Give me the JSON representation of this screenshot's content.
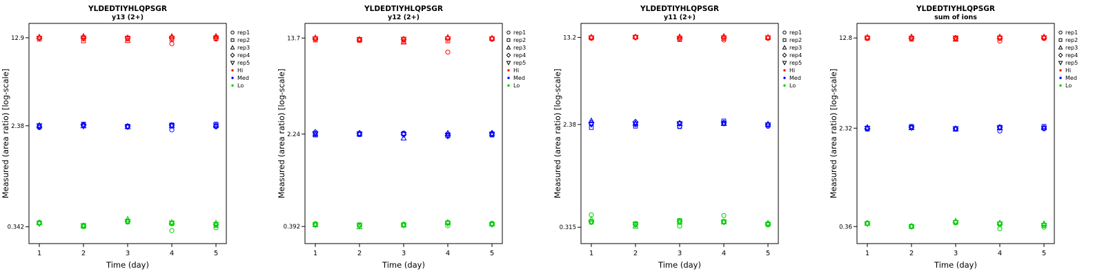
{
  "colors": {
    "hi": "#FF0000",
    "med": "#0000FF",
    "lo": "#00CD00",
    "axis": "#000000"
  },
  "legend": {
    "reps": [
      {
        "label": "rep1",
        "symbol": "circle"
      },
      {
        "label": "rep2",
        "symbol": "square"
      },
      {
        "label": "rep3",
        "symbol": "triangle-up"
      },
      {
        "label": "rep4",
        "symbol": "diamond"
      },
      {
        "label": "rep5",
        "symbol": "triangle-down"
      }
    ],
    "levels": [
      {
        "label": "Hi",
        "color_key": "hi"
      },
      {
        "label": "Med",
        "color_key": "med"
      },
      {
        "label": "Lo",
        "color_key": "lo"
      }
    ]
  },
  "chart_data": [
    {
      "type": "scatter",
      "title": "YLDEDTIYHLQPSGR",
      "subtitle": "y13 (2+)",
      "xlabel": "Time (day)",
      "ylabel": "Measured (area ratio) [log-scale]",
      "yscale": "log",
      "x": [
        1,
        2,
        3,
        4,
        5
      ],
      "yticks": [
        {
          "value": 12.9,
          "label": "12.9"
        },
        {
          "value": 2.38,
          "label": "2.38"
        },
        {
          "value": 0.342,
          "label": "0.342"
        }
      ],
      "levels": [
        {
          "name": "Hi",
          "color_key": "hi",
          "reps": [
            {
              "name": "rep1",
              "values": [
                12.9,
                12.65,
                12.75,
                11.5,
                12.6
              ]
            },
            {
              "name": "rep2",
              "values": [
                12.55,
                12.15,
                12.65,
                12.55,
                12.75
              ]
            },
            {
              "name": "rep3",
              "values": [
                13.1,
                13.3,
                12.25,
                13.25,
                13.3
              ]
            },
            {
              "name": "rep4",
              "values": [
                12.85,
                12.9,
                12.9,
                12.9,
                13.0
              ]
            },
            {
              "name": "rep5",
              "values": [
                12.8,
                12.85,
                12.8,
                12.8,
                12.9
              ]
            }
          ]
        },
        {
          "name": "Med",
          "color_key": "med",
          "reps": [
            {
              "name": "rep1",
              "values": [
                2.3,
                2.42,
                2.32,
                2.2,
                2.34
              ]
            },
            {
              "name": "rep2",
              "values": [
                2.36,
                2.46,
                2.36,
                2.42,
                2.46
              ]
            },
            {
              "name": "rep3",
              "values": [
                2.4,
                2.38,
                2.34,
                2.38,
                2.4
              ]
            },
            {
              "name": "rep4",
              "values": [
                2.34,
                2.4,
                2.36,
                2.4,
                2.36
              ]
            },
            {
              "name": "rep5",
              "values": [
                2.38,
                2.36,
                2.34,
                2.38,
                2.38
              ]
            }
          ]
        },
        {
          "name": "Lo",
          "color_key": "lo",
          "reps": [
            {
              "name": "rep1",
              "values": [
                0.372,
                0.352,
                0.382,
                0.318,
                0.336
              ]
            },
            {
              "name": "rep2",
              "values": [
                0.368,
                0.344,
                0.376,
                0.364,
                0.352
              ]
            },
            {
              "name": "rep3",
              "values": [
                0.37,
                0.35,
                0.396,
                0.372,
                0.368
              ]
            },
            {
              "name": "rep4",
              "values": [
                0.366,
                0.348,
                0.378,
                0.366,
                0.355
              ]
            },
            {
              "name": "rep5",
              "values": [
                0.364,
                0.35,
                0.38,
                0.368,
                0.358
              ]
            }
          ]
        }
      ]
    },
    {
      "type": "scatter",
      "title": "YLDEDTIYHLQPSGR",
      "subtitle": "y12 (2+)",
      "xlabel": "Time (day)",
      "ylabel": "Measured (area ratio) [log-scale]",
      "yscale": "log",
      "x": [
        1,
        2,
        3,
        4,
        5
      ],
      "yticks": [
        {
          "value": 13.7,
          "label": "13.7"
        },
        {
          "value": 2.24,
          "label": "2.24"
        },
        {
          "value": 0.392,
          "label": "0.392"
        }
      ],
      "levels": [
        {
          "name": "Hi",
          "color_key": "hi",
          "reps": [
            {
              "name": "rep1",
              "values": [
                13.5,
                13.3,
                13.2,
                10.5,
                13.4
              ]
            },
            {
              "name": "rep2",
              "values": [
                13.2,
                13.1,
                12.8,
                13.0,
                13.5
              ]
            },
            {
              "name": "rep3",
              "values": [
                13.8,
                13.4,
                12.7,
                13.9,
                13.7
              ]
            },
            {
              "name": "rep4",
              "values": [
                13.6,
                13.3,
                13.4,
                13.6,
                13.6
              ]
            },
            {
              "name": "rep5",
              "values": [
                13.5,
                13.35,
                13.4,
                13.5,
                13.5
              ]
            }
          ]
        },
        {
          "name": "Med",
          "color_key": "med",
          "reps": [
            {
              "name": "rep1",
              "values": [
                2.27,
                2.24,
                2.28,
                2.24,
                2.22
              ]
            },
            {
              "name": "rep2",
              "values": [
                2.2,
                2.22,
                2.25,
                2.17,
                2.2
              ]
            },
            {
              "name": "rep3",
              "values": [
                2.24,
                2.26,
                2.08,
                2.28,
                2.26
              ]
            },
            {
              "name": "rep4",
              "values": [
                2.32,
                2.28,
                2.22,
                2.16,
                2.28
              ]
            },
            {
              "name": "rep5",
              "values": [
                2.26,
                2.25,
                2.22,
                2.2,
                2.24
              ]
            }
          ]
        },
        {
          "name": "Lo",
          "color_key": "lo",
          "reps": [
            {
              "name": "rep1",
              "values": [
                0.413,
                0.4,
                0.409,
                0.398,
                0.416
              ]
            },
            {
              "name": "rep2",
              "values": [
                0.408,
                0.405,
                0.402,
                0.421,
                0.41
              ]
            },
            {
              "name": "rep3",
              "values": [
                0.405,
                0.39,
                0.404,
                0.425,
                0.412
              ]
            },
            {
              "name": "rep4",
              "values": [
                0.407,
                0.4,
                0.405,
                0.418,
                0.409
              ]
            },
            {
              "name": "rep5",
              "values": [
                0.404,
                0.398,
                0.403,
                0.415,
                0.407
              ]
            }
          ]
        }
      ]
    },
    {
      "type": "scatter",
      "title": "YLDEDTIYHLQPSGR",
      "subtitle": "y11 (2+)",
      "xlabel": "Time (day)",
      "ylabel": "Measured (area ratio) [log-scale]",
      "yscale": "log",
      "x": [
        1,
        2,
        3,
        4,
        5
      ],
      "yticks": [
        {
          "value": 13.2,
          "label": "13.2"
        },
        {
          "value": 2.38,
          "label": "2.38"
        },
        {
          "value": 0.315,
          "label": "0.315"
        }
      ],
      "levels": [
        {
          "name": "Hi",
          "color_key": "hi",
          "reps": [
            {
              "name": "rep1",
              "values": [
                13.0,
                13.2,
                12.75,
                12.55,
                13.0
              ]
            },
            {
              "name": "rep2",
              "values": [
                13.1,
                13.3,
                12.65,
                12.9,
                13.1
              ]
            },
            {
              "name": "rep3",
              "values": [
                13.3,
                13.35,
                13.4,
                13.5,
                13.25
              ]
            },
            {
              "name": "rep4",
              "values": [
                13.15,
                13.25,
                13.1,
                13.15,
                13.1
              ]
            },
            {
              "name": "rep5",
              "values": [
                13.1,
                13.2,
                13.0,
                13.1,
                13.1
              ]
            }
          ]
        },
        {
          "name": "Med",
          "color_key": "med",
          "reps": [
            {
              "name": "rep1",
              "values": [
                2.4,
                2.38,
                2.3,
                2.42,
                2.3
              ]
            },
            {
              "name": "rep2",
              "values": [
                2.24,
                2.3,
                2.28,
                2.55,
                2.36
              ]
            },
            {
              "name": "rep3",
              "values": [
                2.56,
                2.44,
                2.42,
                2.42,
                2.4
              ]
            },
            {
              "name": "rep4",
              "values": [
                2.46,
                2.5,
                2.44,
                2.46,
                2.38
              ]
            },
            {
              "name": "rep5",
              "values": [
                2.38,
                2.4,
                2.42,
                2.44,
                2.36
              ]
            }
          ]
        },
        {
          "name": "Lo",
          "color_key": "lo",
          "reps": [
            {
              "name": "rep1",
              "values": [
                0.402,
                0.33,
                0.322,
                0.396,
                0.33
              ]
            },
            {
              "name": "rep2",
              "values": [
                0.348,
                0.338,
                0.36,
                0.352,
                0.332
              ]
            },
            {
              "name": "rep3",
              "values": [
                0.368,
                0.322,
                0.35,
                0.35,
                0.342
              ]
            },
            {
              "name": "rep4",
              "values": [
                0.35,
                0.334,
                0.352,
                0.35,
                0.336
              ]
            },
            {
              "name": "rep5",
              "values": [
                0.349,
                0.333,
                0.351,
                0.348,
                0.335
              ]
            }
          ]
        }
      ]
    },
    {
      "type": "scatter",
      "title": "YLDEDTIYHLQPSGR",
      "subtitle": "sum of ions",
      "xlabel": "Time (day)",
      "ylabel": "Measured (area ratio) [log-scale]",
      "yscale": "log",
      "x": [
        1,
        2,
        3,
        4,
        5
      ],
      "yticks": [
        {
          "value": 12.8,
          "label": "12.8"
        },
        {
          "value": 2.32,
          "label": "2.32"
        },
        {
          "value": 0.36,
          "label": "0.36"
        }
      ],
      "levels": [
        {
          "name": "Hi",
          "color_key": "hi",
          "reps": [
            {
              "name": "rep1",
              "values": [
                12.8,
                12.7,
                12.7,
                12.1,
                12.7
              ]
            },
            {
              "name": "rep2",
              "values": [
                12.7,
                12.5,
                12.6,
                12.7,
                12.8
              ]
            },
            {
              "name": "rep3",
              "values": [
                13.0,
                13.1,
                12.5,
                13.1,
                13.1
              ]
            },
            {
              "name": "rep4",
              "values": [
                12.85,
                12.8,
                12.8,
                12.8,
                12.9
              ]
            },
            {
              "name": "rep5",
              "values": [
                12.8,
                12.75,
                12.8,
                12.8,
                12.85
              ]
            }
          ]
        },
        {
          "name": "Med",
          "color_key": "med",
          "reps": [
            {
              "name": "rep1",
              "values": [
                2.3,
                2.36,
                2.28,
                2.2,
                2.3
              ]
            },
            {
              "name": "rep2",
              "values": [
                2.28,
                2.4,
                2.3,
                2.36,
                2.4
              ]
            },
            {
              "name": "rep3",
              "values": [
                2.36,
                2.34,
                2.28,
                2.34,
                2.34
              ]
            },
            {
              "name": "rep4",
              "values": [
                2.3,
                2.36,
                2.3,
                2.36,
                2.32
              ]
            },
            {
              "name": "rep5",
              "values": [
                2.32,
                2.34,
                2.3,
                2.34,
                2.32
              ]
            }
          ]
        },
        {
          "name": "Lo",
          "color_key": "lo",
          "reps": [
            {
              "name": "rep1",
              "values": [
                0.385,
                0.364,
                0.39,
                0.346,
                0.356
              ]
            },
            {
              "name": "rep2",
              "values": [
                0.382,
                0.36,
                0.388,
                0.378,
                0.368
              ]
            },
            {
              "name": "rep3",
              "values": [
                0.384,
                0.362,
                0.4,
                0.386,
                0.38
              ]
            },
            {
              "name": "rep4",
              "values": [
                0.381,
                0.361,
                0.391,
                0.38,
                0.37
              ]
            },
            {
              "name": "rep5",
              "values": [
                0.38,
                0.36,
                0.389,
                0.379,
                0.369
              ]
            }
          ]
        }
      ]
    }
  ]
}
